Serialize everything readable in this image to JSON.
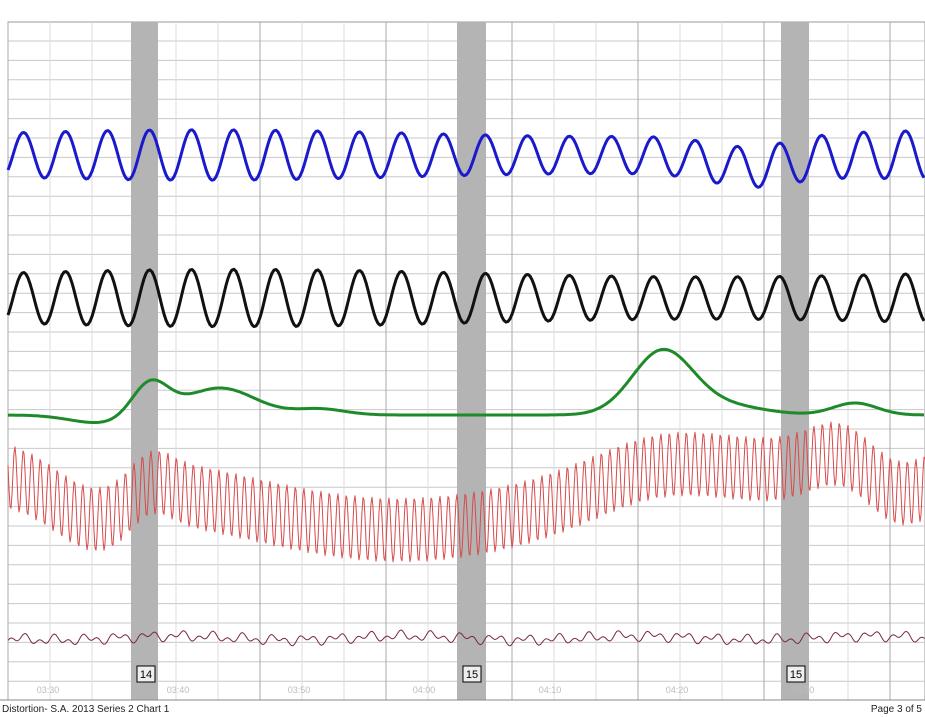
{
  "markers": [
    "14",
    "15",
    "15"
  ],
  "time_labels": [
    "03:30",
    "03:40",
    "03:50",
    "04:00",
    "04:10",
    "04:20",
    "04:30"
  ],
  "footer": {
    "left": "Distortion- S.A. 2013 Series 2 Chart 1",
    "right": "Page 3 of 5"
  }
}
